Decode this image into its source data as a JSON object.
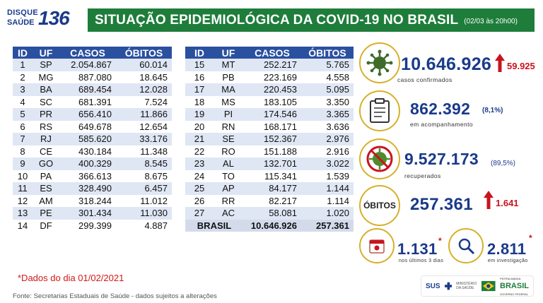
{
  "header": {
    "logo_line1": "DISQUE",
    "logo_line2": "SAÚDE",
    "logo_number": "136",
    "title": "SITUAÇÃO EPIDEMIOLÓGICA DA COVID-19 NO BRASIL",
    "date": "(02/03 às 20h00)"
  },
  "table": {
    "columns": [
      "ID",
      "UF",
      "CASOS",
      "ÓBITOS"
    ],
    "left": [
      [
        "1",
        "SP",
        "2.054.867",
        "60.014"
      ],
      [
        "2",
        "MG",
        "887.080",
        "18.645"
      ],
      [
        "3",
        "BA",
        "689.454",
        "12.028"
      ],
      [
        "4",
        "SC",
        "681.391",
        "7.524"
      ],
      [
        "5",
        "PR",
        "656.410",
        "11.866"
      ],
      [
        "6",
        "RS",
        "649.678",
        "12.654"
      ],
      [
        "7",
        "RJ",
        "585.620",
        "33.176"
      ],
      [
        "8",
        "CE",
        "430.184",
        "11.348"
      ],
      [
        "9",
        "GO",
        "400.329",
        "8.545"
      ],
      [
        "10",
        "PA",
        "366.613",
        "8.675"
      ],
      [
        "11",
        "ES",
        "328.490",
        "6.457"
      ],
      [
        "12",
        "AM",
        "318.244",
        "11.012"
      ],
      [
        "13",
        "PE",
        "301.434",
        "11.030"
      ],
      [
        "14",
        "DF",
        "299.399",
        "4.887"
      ]
    ],
    "right": [
      [
        "15",
        "MT",
        "252.217",
        "5.765"
      ],
      [
        "16",
        "PB",
        "223.169",
        "4.558"
      ],
      [
        "17",
        "MA",
        "220.453",
        "5.095"
      ],
      [
        "18",
        "MS",
        "183.105",
        "3.350"
      ],
      [
        "19",
        "PI",
        "174.546",
        "3.365"
      ],
      [
        "20",
        "RN",
        "168.171",
        "3.636"
      ],
      [
        "21",
        "SE",
        "152.367",
        "2.976"
      ],
      [
        "22",
        "RO",
        "151.188",
        "2.916"
      ],
      [
        "23",
        "AL",
        "132.701",
        "3.022"
      ],
      [
        "24",
        "TO",
        "115.341",
        "1.539"
      ],
      [
        "25",
        "AP",
        "84.177",
        "1.144"
      ],
      [
        "26",
        "RR",
        "82.217",
        "1.114"
      ],
      [
        "27",
        "AC",
        "58.081",
        "1.020"
      ]
    ],
    "total": {
      "label": "BRASIL",
      "casos": "10.646.926",
      "obitos": "257.361"
    }
  },
  "stats": {
    "confirmados": {
      "value": "10.646.926",
      "delta": "59.925",
      "label": "casos confirmados",
      "icon": "virus-icon"
    },
    "acompanhamento": {
      "value": "862.392",
      "pct": "(8,1%)",
      "label": "em acompanhamento",
      "icon": "clipboard-icon"
    },
    "recuperados": {
      "value": "9.527.173",
      "pct": "(89,5%)",
      "label": "recuperados",
      "icon": "recovered-virus-icon"
    },
    "obitos": {
      "circle_label": "ÓBITOS",
      "value": "257.361",
      "delta": "1.641"
    },
    "ultimos": {
      "value": "1.131",
      "label": "nos últimos 3 dias",
      "asterisk": "*",
      "icon": "calendar-icon"
    },
    "investigacao": {
      "value": "2.811",
      "label": "em investigação",
      "asterisk": "*",
      "icon": "magnifier-icon"
    }
  },
  "colors": {
    "title_bg": "#1e7d3a",
    "table_header": "#2a50a0",
    "accent_gold": "#d6b02a",
    "value_blue": "#1a3a8a",
    "alert_red": "#c8141e"
  },
  "footer": {
    "note": "*Dados do dia 01/02/2021",
    "source": "Fonte: Secretarias Estaduais de Saúde - dados sujeitos a alterações",
    "sus": "SUS",
    "ministry": "MINISTÉRIO DA SAÚDE",
    "brasil_small": "PÁTRIA AMADA",
    "brasil": "BRASIL",
    "brasil_sub": "GOVERNO FEDERAL"
  }
}
